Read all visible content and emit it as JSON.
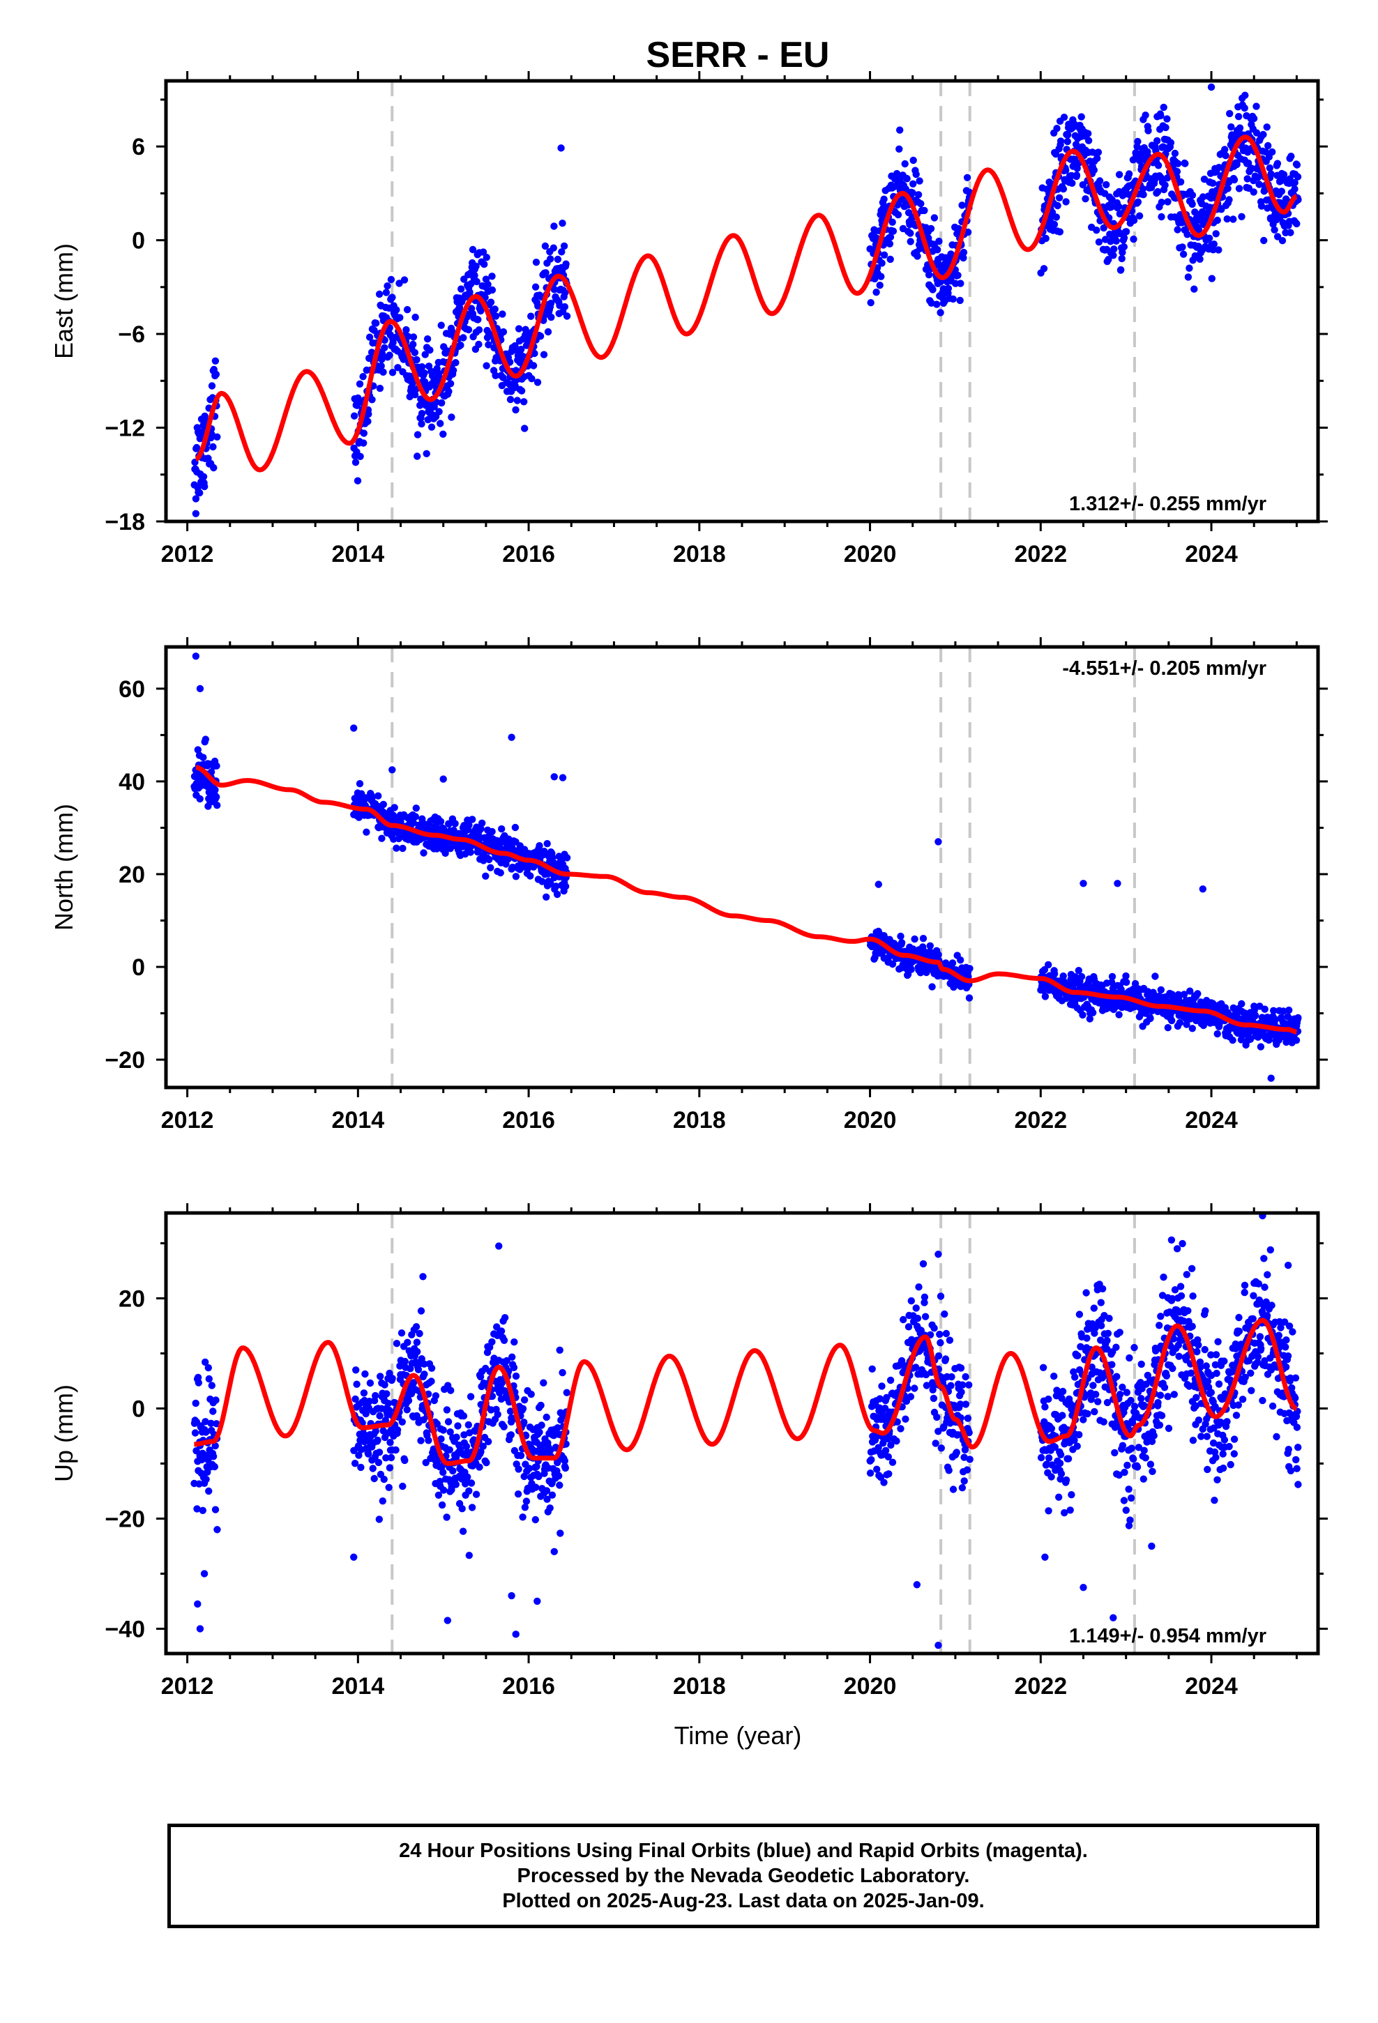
{
  "title": "SERR - EU",
  "colors": {
    "points": "#0000ff",
    "model": "#ff0000",
    "offset_lines": "#c8c8c8",
    "frame": "#000000"
  },
  "x_axis": {
    "label": "Time (year)",
    "range": [
      2011.75,
      2025.25
    ],
    "tick_labels": [
      "2012",
      "2014",
      "2016",
      "2018",
      "2020",
      "2022",
      "2024"
    ]
  },
  "offset_epochs": [
    2014.4,
    2020.83,
    2021.17,
    2023.1
  ],
  "data_gaps": [
    [
      2012.35,
      2013.95
    ],
    [
      2016.45,
      2020.0
    ],
    [
      2021.17,
      2022.0
    ]
  ],
  "caption": {
    "line1": "24 Hour Positions Using Final Orbits (blue) and Rapid Orbits (magenta).",
    "line2": "Processed by the Nevada Geodetic Laboratory.",
    "line3": "Plotted on 2025-Aug-23. Last data on 2025-Jan-09."
  },
  "chart_data": [
    {
      "type": "scatter",
      "component": "east",
      "ylabel": "East (mm)",
      "ylim": [
        -18,
        10.2
      ],
      "y_tick_labels": [
        "−18",
        "−12",
        "−6",
        "0",
        "6"
      ],
      "rate_text": "1.312+/- 0.255 mm/yr",
      "rate_placement": "bottom-right",
      "model_peaks": [
        [
          2012.1,
          -14.0
        ],
        [
          2012.4,
          -9.8
        ],
        [
          2012.85,
          -14.7
        ],
        [
          2013.4,
          -8.4
        ],
        [
          2013.9,
          -13.0
        ],
        [
          2014.38,
          -5.2
        ],
        [
          2014.85,
          -10.2
        ],
        [
          2015.38,
          -3.6
        ],
        [
          2015.85,
          -8.7
        ],
        [
          2016.35,
          -2.3
        ],
        [
          2016.85,
          -7.5
        ],
        [
          2017.4,
          -1.0
        ],
        [
          2017.85,
          -6.0
        ],
        [
          2018.4,
          0.3
        ],
        [
          2018.85,
          -4.7
        ],
        [
          2019.4,
          1.6
        ],
        [
          2019.85,
          -3.4
        ],
        [
          2020.38,
          3.0
        ],
        [
          2020.85,
          -2.4
        ],
        [
          2021.38,
          4.5
        ],
        [
          2021.85,
          -0.6
        ],
        [
          2022.38,
          5.7
        ],
        [
          2022.85,
          0.8
        ],
        [
          2023.38,
          5.5
        ],
        [
          2023.85,
          0.3
        ],
        [
          2024.4,
          6.6
        ],
        [
          2024.85,
          1.8
        ],
        [
          2025.0,
          2.8
        ]
      ],
      "observed_segments": [
        {
          "t_start": 2012.08,
          "t_end": 2012.35,
          "center_start": -14.0,
          "center_end": -10.5,
          "scatter": 1.6
        },
        {
          "t_start": 2013.95,
          "t_end": 2016.45,
          "center_start": -12.5,
          "center_end": -2.8,
          "scatter": 1.4
        },
        {
          "t_start": 2020.0,
          "t_end": 2021.17,
          "center_start": -2.0,
          "center_end": -1.5,
          "scatter": 1.3
        },
        {
          "t_start": 2022.0,
          "t_end": 2025.02,
          "center_start": 2.0,
          "center_end": 2.5,
          "scatter": 1.5
        }
      ],
      "outliers": [
        [
          2016.38,
          5.9
        ],
        [
          2024.0,
          9.8
        ],
        [
          2012.1,
          -17.5
        ]
      ]
    },
    {
      "type": "scatter",
      "component": "north",
      "ylabel": "North (mm)",
      "ylim": [
        -26,
        69
      ],
      "y_tick_labels": [
        "−20",
        "0",
        "20",
        "40",
        "60"
      ],
      "rate_text": "-4.551+/- 0.205 mm/yr",
      "rate_placement": "top-right",
      "model_peaks": [
        [
          2012.1,
          43.0
        ],
        [
          2012.4,
          39.2
        ],
        [
          2012.7,
          40.2
        ],
        [
          2013.2,
          38.2
        ],
        [
          2013.6,
          35.5
        ],
        [
          2014.1,
          34.0
        ],
        [
          2014.4,
          30.5
        ],
        [
          2014.9,
          28.4
        ],
        [
          2015.2,
          27.5
        ],
        [
          2015.7,
          24.5
        ],
        [
          2016.0,
          23.0
        ],
        [
          2016.45,
          20.0
        ],
        [
          2016.9,
          19.5
        ],
        [
          2017.4,
          16.0
        ],
        [
          2017.8,
          15.0
        ],
        [
          2018.4,
          11.0
        ],
        [
          2018.8,
          10.0
        ],
        [
          2019.4,
          6.5
        ],
        [
          2019.8,
          5.5
        ],
        [
          2020.0,
          6.0
        ],
        [
          2020.4,
          2.5
        ],
        [
          2020.8,
          1.0
        ],
        [
          2020.85,
          -0.5
        ],
        [
          2021.17,
          -3.0
        ],
        [
          2021.5,
          -1.5
        ],
        [
          2022.0,
          -2.5
        ],
        [
          2022.4,
          -5.5
        ],
        [
          2022.9,
          -6.5
        ],
        [
          2023.4,
          -8.5
        ],
        [
          2023.9,
          -9.5
        ],
        [
          2024.4,
          -12.5
        ],
        [
          2024.9,
          -13.5
        ],
        [
          2025.0,
          -14.0
        ]
      ],
      "observed_segments": [
        {
          "t_start": 2012.08,
          "t_end": 2012.35,
          "center_start": 42.0,
          "center_end": 39.0,
          "scatter": 2.8
        },
        {
          "t_start": 2013.95,
          "t_end": 2016.45,
          "center_start": 34.0,
          "center_end": 20.0,
          "scatter": 2.0
        },
        {
          "t_start": 2020.0,
          "t_end": 2021.17,
          "center_start": 3.5,
          "center_end": -1.5,
          "scatter": 1.6
        },
        {
          "t_start": 2022.0,
          "t_end": 2025.02,
          "center_start": -4.5,
          "center_end": -14.0,
          "scatter": 1.8
        }
      ],
      "outliers": [
        [
          2012.1,
          67.0
        ],
        [
          2012.15,
          60.0
        ],
        [
          2013.95,
          51.5
        ],
        [
          2015.8,
          49.5
        ],
        [
          2016.3,
          41.0
        ],
        [
          2016.4,
          40.8
        ],
        [
          2015.0,
          40.5
        ],
        [
          2014.4,
          42.5
        ],
        [
          2020.8,
          27.0
        ],
        [
          2022.5,
          18.0
        ],
        [
          2022.9,
          18.0
        ],
        [
          2023.9,
          16.8
        ],
        [
          2020.1,
          17.8
        ],
        [
          2024.7,
          -24.0
        ]
      ]
    },
    {
      "type": "scatter",
      "component": "up",
      "ylabel": "Up (mm)",
      "ylim": [
        -44.5,
        35.5
      ],
      "y_tick_labels": [
        "−40",
        "−20",
        "0",
        "20"
      ],
      "rate_text": "1.149+/- 0.954 mm/yr",
      "rate_placement": "bottom-right",
      "model_peaks": [
        [
          2012.08,
          -6.5
        ],
        [
          2012.3,
          -6.0
        ],
        [
          2012.65,
          11.0
        ],
        [
          2013.15,
          -5.0
        ],
        [
          2013.65,
          12.0
        ],
        [
          2014.05,
          -3.5
        ],
        [
          2014.35,
          -3.0
        ],
        [
          2014.65,
          6.0
        ],
        [
          2015.05,
          -10.0
        ],
        [
          2015.3,
          -9.5
        ],
        [
          2015.65,
          7.5
        ],
        [
          2016.05,
          -9.0
        ],
        [
          2016.3,
          -9.0
        ],
        [
          2016.65,
          8.5
        ],
        [
          2017.15,
          -7.5
        ],
        [
          2017.65,
          9.5
        ],
        [
          2018.15,
          -6.5
        ],
        [
          2018.65,
          10.5
        ],
        [
          2019.15,
          -5.5
        ],
        [
          2019.65,
          11.5
        ],
        [
          2020.05,
          -4.0
        ],
        [
          2020.15,
          -4.5
        ],
        [
          2020.65,
          13.0
        ],
        [
          2020.83,
          4.0
        ],
        [
          2021.0,
          -2.0
        ],
        [
          2021.2,
          -7.0
        ],
        [
          2021.65,
          10.0
        ],
        [
          2022.1,
          -6.0
        ],
        [
          2022.3,
          -5.0
        ],
        [
          2022.65,
          11.0
        ],
        [
          2023.05,
          -5.0
        ],
        [
          2023.15,
          -3.0
        ],
        [
          2023.6,
          15.0
        ],
        [
          2024.05,
          -1.5
        ],
        [
          2024.6,
          16.0
        ],
        [
          2025.0,
          0.0
        ]
      ],
      "observed_segments": [
        {
          "t_start": 2012.08,
          "t_end": 2012.35,
          "center_start": -4.0,
          "center_end": -2.0,
          "scatter": 6.5
        },
        {
          "t_start": 2013.95,
          "t_end": 2016.45,
          "center_start": 0.0,
          "center_end": -5.0,
          "scatter": 5.5
        },
        {
          "t_start": 2020.0,
          "t_end": 2021.17,
          "center_start": 2.0,
          "center_end": 0.0,
          "scatter": 5.5
        },
        {
          "t_start": 2022.0,
          "t_end": 2025.02,
          "center_start": 1.0,
          "center_end": 5.0,
          "scatter": 6.0
        }
      ],
      "outliers": [
        [
          2012.15,
          -40.0
        ],
        [
          2012.12,
          -35.5
        ],
        [
          2012.2,
          -30.0
        ],
        [
          2012.35,
          -22.0
        ],
        [
          2013.95,
          -27.0
        ],
        [
          2015.05,
          -38.5
        ],
        [
          2015.85,
          -41.0
        ],
        [
          2015.65,
          29.5
        ],
        [
          2015.8,
          -34.0
        ],
        [
          2016.1,
          -35.0
        ],
        [
          2016.3,
          -26.0
        ],
        [
          2020.8,
          -43.0
        ],
        [
          2020.55,
          -32.0
        ],
        [
          2020.8,
          28.0
        ],
        [
          2022.05,
          -27.0
        ],
        [
          2022.5,
          -32.5
        ],
        [
          2022.85,
          -38.0
        ],
        [
          2023.6,
          29.0
        ],
        [
          2024.6,
          35.0
        ],
        [
          2024.9,
          26.0
        ],
        [
          2023.3,
          -25.0
        ]
      ]
    }
  ]
}
